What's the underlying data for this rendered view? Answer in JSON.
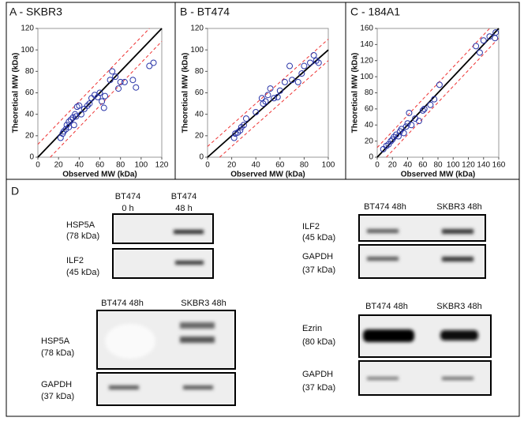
{
  "chart_data": [
    {
      "type": "scatter",
      "title": "A - SKBR3",
      "x_label": "Observed MW (kDa)",
      "y_label": "Theoretical MW (kDa)",
      "color": "#2a35a8",
      "band_offset": 12,
      "xlim": [
        0,
        120
      ],
      "ylim": [
        0,
        120
      ],
      "xticks": [
        0,
        20,
        40,
        60,
        80,
        100,
        120
      ],
      "yticks": [
        0,
        20,
        40,
        60,
        80,
        100,
        120
      ],
      "x": [
        22,
        24,
        25,
        27,
        28,
        30,
        30,
        32,
        34,
        35,
        36,
        37,
        38,
        40,
        42,
        45,
        48,
        50,
        52,
        55,
        58,
        60,
        62,
        64,
        65,
        70,
        72,
        75,
        78,
        80,
        84,
        92,
        95,
        108,
        112
      ],
      "values": [
        18,
        22,
        24,
        26,
        30,
        28,
        33,
        35,
        37,
        30,
        40,
        38,
        47,
        48,
        40,
        45,
        48,
        50,
        55,
        58,
        56,
        60,
        52,
        46,
        57,
        72,
        80,
        75,
        64,
        70,
        70,
        72,
        65,
        85,
        88
      ]
    },
    {
      "type": "scatter",
      "title": "B - BT474",
      "x_label": "Observed MW (kDa)",
      "y_label": "Theoretical MW (kDa)",
      "color": "#2a35a8",
      "band_offset": 10,
      "xlim": [
        0,
        100
      ],
      "ylim": [
        0,
        120
      ],
      "xticks": [
        0,
        20,
        40,
        60,
        80,
        100
      ],
      "yticks": [
        0,
        20,
        40,
        60,
        80,
        100,
        120
      ],
      "x": [
        22,
        23,
        25,
        27,
        28,
        30,
        32,
        40,
        45,
        46,
        48,
        50,
        52,
        55,
        58,
        60,
        64,
        68,
        70,
        75,
        78,
        80,
        85,
        88,
        90,
        92
      ],
      "values": [
        18,
        22,
        23,
        25,
        28,
        30,
        36,
        42,
        55,
        50,
        52,
        58,
        64,
        55,
        56,
        62,
        70,
        85,
        72,
        70,
        78,
        85,
        88,
        95,
        90,
        88
      ]
    },
    {
      "type": "scatter",
      "title": "C - 184A1",
      "x_label": "Observed MW (kDa)",
      "y_label": "Theoretical MW (kDa)",
      "color": "#2a35a8",
      "band_offset": 12,
      "xlim": [
        0,
        160
      ],
      "ylim": [
        0,
        160
      ],
      "xticks": [
        0,
        20,
        40,
        60,
        80,
        100,
        120,
        140,
        160
      ],
      "yticks": [
        0,
        20,
        40,
        60,
        80,
        100,
        120,
        140,
        160
      ],
      "x": [
        8,
        12,
        15,
        18,
        20,
        22,
        25,
        28,
        30,
        32,
        35,
        38,
        40,
        42,
        45,
        50,
        55,
        60,
        62,
        70,
        75,
        82,
        130,
        135,
        140,
        148,
        155,
        156
      ],
      "values": [
        10,
        14,
        16,
        20,
        22,
        25,
        28,
        26,
        32,
        35,
        30,
        38,
        42,
        55,
        40,
        48,
        45,
        58,
        60,
        65,
        72,
        90,
        138,
        130,
        145,
        150,
        148,
        155
      ]
    }
  ],
  "panel_d": {
    "label": "D",
    "blot1": {
      "lane1": [
        "BT474",
        "0 h"
      ],
      "lane2": [
        "BT474",
        "48 h"
      ],
      "row1": [
        "HSP5A",
        "(78 kDa)"
      ],
      "row2": [
        "ILF2",
        "(45 kDa)"
      ]
    },
    "blot2": {
      "lane1": "BT474 48h",
      "lane2": "SKBR3 48h",
      "row1": [
        "ILF2",
        "(45 kDa)"
      ],
      "row2": [
        "GAPDH",
        "(37 kDa)"
      ]
    },
    "blot3": {
      "lane1": "BT474 48h",
      "lane2": "SKBR3  48h",
      "row1": [
        "HSP5A",
        "(78 kDa)"
      ],
      "row2": [
        "GAPDH",
        "(37 kDa)"
      ]
    },
    "blot4": {
      "lane1": "BT474 48h",
      "lane2": "SKBR3 48h",
      "row1": [
        "Ezrin",
        "(80 kDa)"
      ],
      "row2": [
        "GAPDH",
        "(37 kDa)"
      ]
    }
  }
}
